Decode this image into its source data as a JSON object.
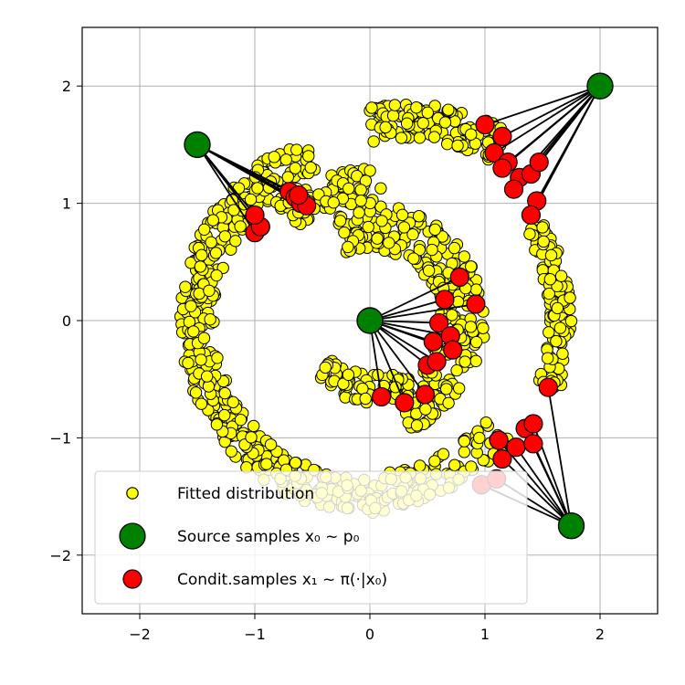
{
  "chart_data": {
    "type": "scatter",
    "title": "",
    "xlabel": "",
    "ylabel": "",
    "xlim": [
      -2.5,
      2.5
    ],
    "ylim": [
      -2.5,
      2.5
    ],
    "grid": true,
    "legend_position": "bottom-left",
    "x_ticks": [
      -2,
      -1,
      0,
      1,
      2
    ],
    "y_ticks": [
      -2,
      -1,
      0,
      1,
      2
    ],
    "x_tick_labels": [
      "−2",
      "−1",
      "0",
      "1",
      "2"
    ],
    "y_tick_labels": [
      "−2",
      "−1",
      "0",
      "1",
      "2"
    ],
    "colors": {
      "fitted": "#ffff00",
      "source": "#008000",
      "conditional": "#ff0000",
      "edge": "#000000",
      "grid": "#b0b0b0"
    },
    "legend": [
      {
        "key": "fitted",
        "text": "Fitted distribution"
      },
      {
        "key": "source",
        "text": "Source samples x₀ ~ p₀"
      },
      {
        "key": "conditional",
        "text": "Condit.samples x₁ ~ π(·|x₀)"
      }
    ],
    "source_samples": [
      {
        "x": -1.5,
        "y": 1.5
      },
      {
        "x": 2.0,
        "y": 2.0
      },
      {
        "x": 0.0,
        "y": 0.0
      },
      {
        "x": 1.75,
        "y": -1.75
      }
    ],
    "conditional_samples": [
      {
        "source": 0,
        "x": -1.0,
        "y": 0.75
      },
      {
        "source": 0,
        "x": -0.95,
        "y": 0.8
      },
      {
        "source": 0,
        "x": -1.0,
        "y": 0.9
      },
      {
        "source": 0,
        "x": -0.7,
        "y": 1.1
      },
      {
        "source": 0,
        "x": -0.65,
        "y": 1.05
      },
      {
        "source": 0,
        "x": -0.6,
        "y": 1.0
      },
      {
        "source": 0,
        "x": -0.55,
        "y": 0.98
      },
      {
        "source": 0,
        "x": -0.62,
        "y": 1.07
      },
      {
        "source": 1,
        "x": 1.0,
        "y": 1.67
      },
      {
        "source": 1,
        "x": 1.15,
        "y": 1.57
      },
      {
        "source": 1,
        "x": 1.08,
        "y": 1.43
      },
      {
        "source": 1,
        "x": 1.2,
        "y": 1.35
      },
      {
        "source": 1,
        "x": 1.15,
        "y": 1.3
      },
      {
        "source": 1,
        "x": 1.3,
        "y": 1.22
      },
      {
        "source": 1,
        "x": 1.4,
        "y": 1.25
      },
      {
        "source": 1,
        "x": 1.47,
        "y": 1.35
      },
      {
        "source": 1,
        "x": 1.25,
        "y": 1.12
      },
      {
        "source": 1,
        "x": 1.45,
        "y": 1.02
      },
      {
        "source": 1,
        "x": 1.4,
        "y": 0.9
      },
      {
        "source": 2,
        "x": 0.1,
        "y": -0.65
      },
      {
        "source": 2,
        "x": 0.3,
        "y": -0.7
      },
      {
        "source": 2,
        "x": 0.48,
        "y": -0.63
      },
      {
        "source": 2,
        "x": 0.5,
        "y": -0.38
      },
      {
        "source": 2,
        "x": 0.58,
        "y": -0.35
      },
      {
        "source": 2,
        "x": 0.55,
        "y": -0.18
      },
      {
        "source": 2,
        "x": 0.6,
        "y": -0.02
      },
      {
        "source": 2,
        "x": 0.7,
        "y": -0.13
      },
      {
        "source": 2,
        "x": 0.72,
        "y": -0.25
      },
      {
        "source": 2,
        "x": 0.65,
        "y": 0.18
      },
      {
        "source": 2,
        "x": 0.78,
        "y": 0.37
      },
      {
        "source": 2,
        "x": 0.92,
        "y": 0.14
      },
      {
        "source": 3,
        "x": 0.97,
        "y": -1.4
      },
      {
        "source": 3,
        "x": 1.1,
        "y": -1.35
      },
      {
        "source": 3,
        "x": 1.15,
        "y": -1.18
      },
      {
        "source": 3,
        "x": 1.12,
        "y": -1.02
      },
      {
        "source": 3,
        "x": 1.27,
        "y": -1.08
      },
      {
        "source": 3,
        "x": 1.35,
        "y": -0.92
      },
      {
        "source": 3,
        "x": 1.42,
        "y": -0.88
      },
      {
        "source": 3,
        "x": 1.42,
        "y": -1.05
      },
      {
        "source": 3,
        "x": 1.55,
        "y": -0.57
      }
    ],
    "fitted_distribution": {
      "description_key": "fitted",
      "arcs": [
        {
          "cx": 0.0,
          "cy": 0.0,
          "r_min": 1.35,
          "r_max": 1.65,
          "theta_start_deg": 110,
          "theta_end_deg": 275,
          "n": 420
        },
        {
          "cx": 0.0,
          "cy": 0.0,
          "r_min": 1.3,
          "r_max": 1.6,
          "theta_start_deg": 275,
          "theta_end_deg": 320,
          "n": 90
        },
        {
          "cx": 0.3,
          "cy": 0.0,
          "r_min": 1.55,
          "r_max": 1.85,
          "theta_start_deg": 60,
          "theta_end_deg": 100,
          "n": 140
        },
        {
          "cx": 0.0,
          "cy": 0.0,
          "r_min": 1.55,
          "r_max": 1.75,
          "theta_start_deg": -20,
          "theta_end_deg": 30,
          "n": 110
        },
        {
          "cx": 0.0,
          "cy": 0.0,
          "r_min": 0.6,
          "r_max": 1.0,
          "theta_start_deg": -70,
          "theta_end_deg": 110,
          "n": 260
        },
        {
          "cx": 0.0,
          "cy": 0.0,
          "r_min": 0.45,
          "r_max": 0.7,
          "theta_start_deg": 225,
          "theta_end_deg": 300,
          "n": 60
        },
        {
          "cx": 0.0,
          "cy": 0.0,
          "r_min": 1.0,
          "r_max": 1.3,
          "theta_start_deg": 85,
          "theta_end_deg": 130,
          "n": 90
        }
      ],
      "sample_count_hint": 1170
    }
  }
}
